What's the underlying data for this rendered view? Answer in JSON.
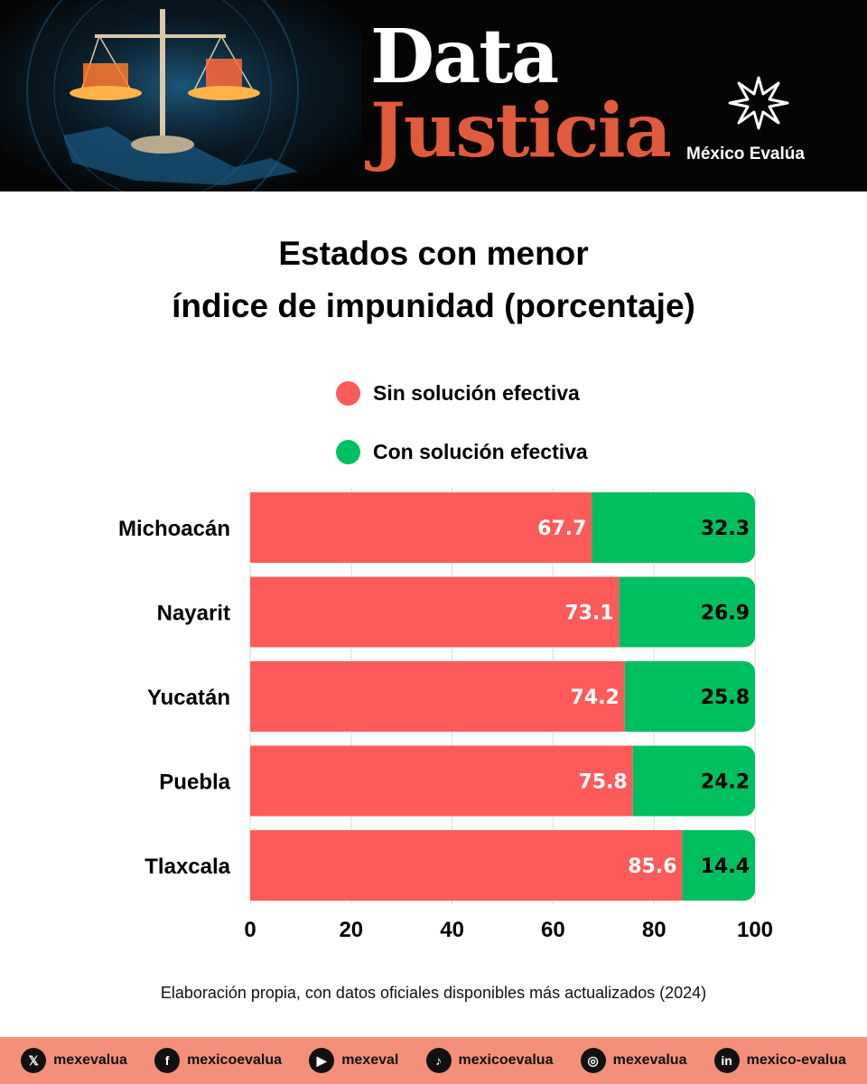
{
  "header": {
    "brand_line1": "Data",
    "brand_line2": "Justicia",
    "org_name": "México Evalúa",
    "colors": {
      "background": "#050505",
      "brand_accent": "#e05a3c",
      "brand_white": "#ffffff"
    }
  },
  "chart_data": {
    "type": "bar",
    "orientation": "horizontal",
    "stacked": true,
    "title_lines": [
      "Estados con menor",
      "índice de impunidad (porcentaje)"
    ],
    "categories": [
      "Michoacán",
      "Nayarit",
      "Yucatán",
      "Puebla",
      "Tlaxcala"
    ],
    "series": [
      {
        "name": "Sin solución efectiva",
        "color": "#fd5a5a",
        "values": [
          67.7,
          73.1,
          74.2,
          75.8,
          85.6
        ]
      },
      {
        "name": "Con solución efectiva",
        "color": "#00bf60",
        "values": [
          32.3,
          26.9,
          25.8,
          24.2,
          14.4
        ]
      }
    ],
    "value_labels": [
      [
        "67.7",
        "73.1",
        "74.2",
        "75.8",
        "85.6"
      ],
      [
        "32.3",
        "26.9",
        "25.8",
        "24.2",
        "14.4"
      ]
    ],
    "xlim": [
      0,
      100
    ],
    "xticks": [
      "0",
      "20",
      "40",
      "60",
      "80",
      "100"
    ],
    "xlabel": "",
    "ylabel": "",
    "grid": true,
    "legend_position": "top"
  },
  "source_note": "Elaboración propia, con datos oficiales disponibles más actualizados (2024)",
  "footer": {
    "background": "#f4907a",
    "socials": [
      {
        "icon": "x-icon",
        "glyph": "𝕏",
        "handle": "mexevalua"
      },
      {
        "icon": "facebook-icon",
        "glyph": "f",
        "handle": "mexicoevalua"
      },
      {
        "icon": "youtube-icon",
        "glyph": "▶",
        "handle": "mexeval"
      },
      {
        "icon": "tiktok-icon",
        "glyph": "♪",
        "handle": "mexicoevalua"
      },
      {
        "icon": "instagram-icon",
        "glyph": "◎",
        "handle": "mexevalua"
      },
      {
        "icon": "linkedin-icon",
        "glyph": "in",
        "handle": "mexico-evalua"
      }
    ]
  }
}
